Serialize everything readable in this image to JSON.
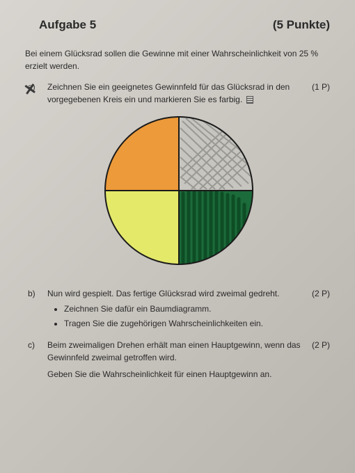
{
  "header": {
    "title": "Aufgabe 5",
    "points": "(5 Punkte)"
  },
  "intro": "Bei einem Glücksrad sollen die Gewinne mit einer Wahrscheinlichkeit von 25 % erzielt werden.",
  "part_a": {
    "label": "a)",
    "text": "Zeichnen Sie ein geeignetes Gewinnfeld für das Glücksrad in den vorgegebenen Kreis ein und markieren Sie es farbig.",
    "points": "(1 P)"
  },
  "wheel": {
    "diameter": 220,
    "stroke": "#1a1a1a",
    "stroke_width": 2,
    "quadrants": {
      "top_left": {
        "fill": "#ec9a3a"
      },
      "top_right": {
        "fill": "#c7c5c0",
        "scribble": "#8a8a86"
      },
      "bottom_left": {
        "fill": "#e4e96a"
      },
      "bottom_right": {
        "fill": "#1c6b3a",
        "scribble": "#0d4a24"
      }
    }
  },
  "part_b": {
    "label": "b)",
    "text": "Nun wird gespielt. Das fertige Glücksrad wird zweimal gedreht.",
    "points": "(2 P)",
    "bullets": [
      "Zeichnen Sie dafür ein Baumdiagramm.",
      "Tragen Sie die zugehörigen Wahrscheinlichkeiten ein."
    ]
  },
  "part_c": {
    "label": "c)",
    "text": "Beim zweimaligen Drehen erhält man einen Hauptgewinn, wenn das Gewinnfeld zweimal getroffen wird.",
    "points": "(2 P)",
    "sub": "Geben Sie die Wahrscheinlichkeit für einen Hauptgewinn an."
  }
}
